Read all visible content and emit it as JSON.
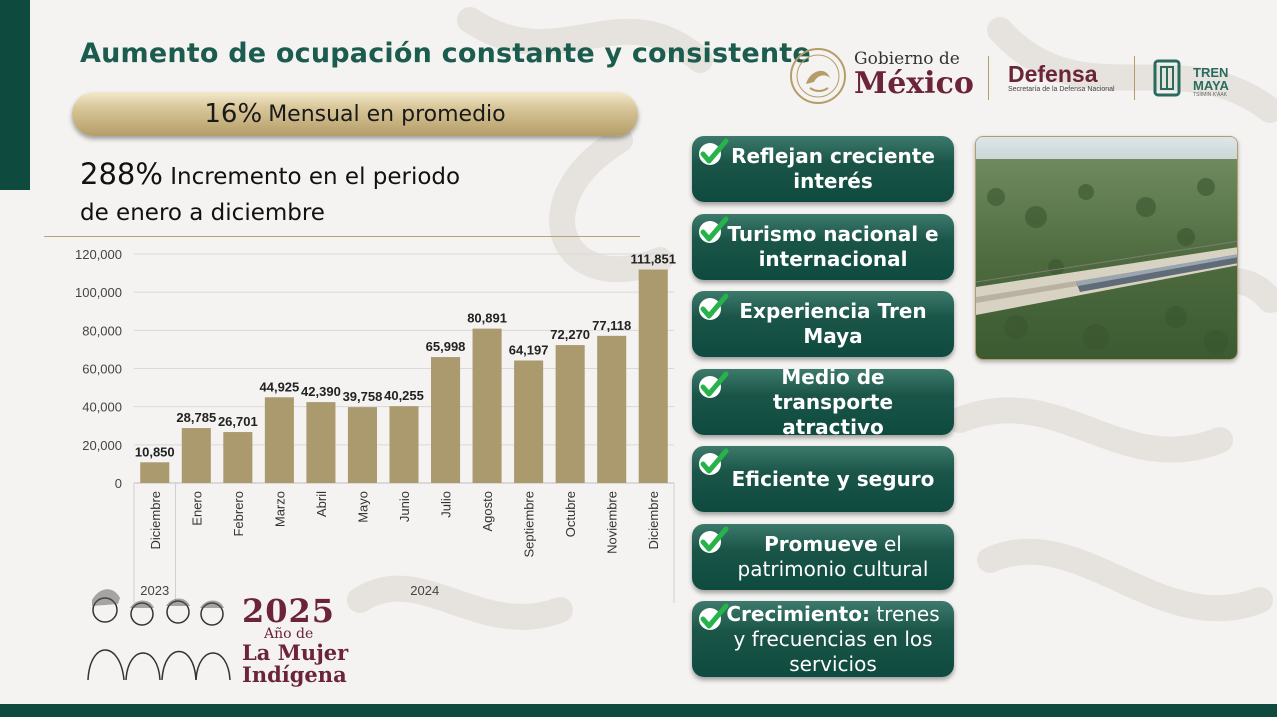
{
  "title": "Aumento de ocupación constante y consistente",
  "pill": {
    "value": "16%",
    "text": "Mensual en promedio"
  },
  "increment": {
    "value": "288%",
    "line1": "Incremento en el periodo",
    "line2": "de enero a diciembre"
  },
  "logos": {
    "gobierno": "Gobierno de",
    "mexico": "México",
    "defensa": "Defensa",
    "defensa_sub": "Secretaría de la Defensa Nacional",
    "tren": "TREN",
    "maya": "MAYA",
    "maya_sub": "TSÍIMIN K'ÁAK"
  },
  "cards": [
    {
      "bold": "Reflejan creciente interés",
      "rest": ""
    },
    {
      "bold": "Turismo nacional e internacional",
      "rest": ""
    },
    {
      "bold": "Experiencia Tren Maya",
      "rest": ""
    },
    {
      "bold": "Medio de transporte atractivo",
      "rest": ""
    },
    {
      "bold": "Eficiente y seguro",
      "rest": ""
    },
    {
      "bold": "Promueve",
      "rest": " el patrimonio cultural"
    },
    {
      "bold": "Crecimiento:",
      "rest": " trenes y frecuencias en los servicios"
    }
  ],
  "badge": {
    "year": "2025",
    "ano": "Año de",
    "line1": "La Mujer",
    "line2": "Indígena"
  },
  "colors": {
    "accent_green": "#0f4a3f",
    "bar": "#ab9a6d",
    "guinda": "#6b2438",
    "gold": "#b49d68"
  },
  "chart_data": {
    "type": "bar",
    "categories": [
      "Diciembre",
      "Enero",
      "Febrero",
      "Marzo",
      "Abril",
      "Mayo",
      "Junio",
      "Julio",
      "Agosto",
      "Septiembre",
      "Octubre",
      "Noviembre",
      "Diciembre"
    ],
    "values": [
      10850,
      28785,
      26701,
      44925,
      42390,
      39758,
      40255,
      65998,
      80891,
      64197,
      72270,
      77118,
      111851
    ],
    "value_labels": [
      "10,850",
      "28,785",
      "26,701",
      "44,925",
      "42,390",
      "39,758",
      "40,255",
      "65,998",
      "80,891",
      "64,197",
      "72,270",
      "77,118",
      "111,851"
    ],
    "groups": [
      {
        "label": "2023",
        "count": 1
      },
      {
        "label": "2024",
        "count": 12
      }
    ],
    "yticks": [
      "0",
      "20,000",
      "40,000",
      "60,000",
      "80,000",
      "100,000",
      "120,000"
    ],
    "ylim": [
      0,
      120000
    ],
    "grid": true,
    "legend": "none",
    "title": "",
    "xlabel": "",
    "ylabel": ""
  }
}
